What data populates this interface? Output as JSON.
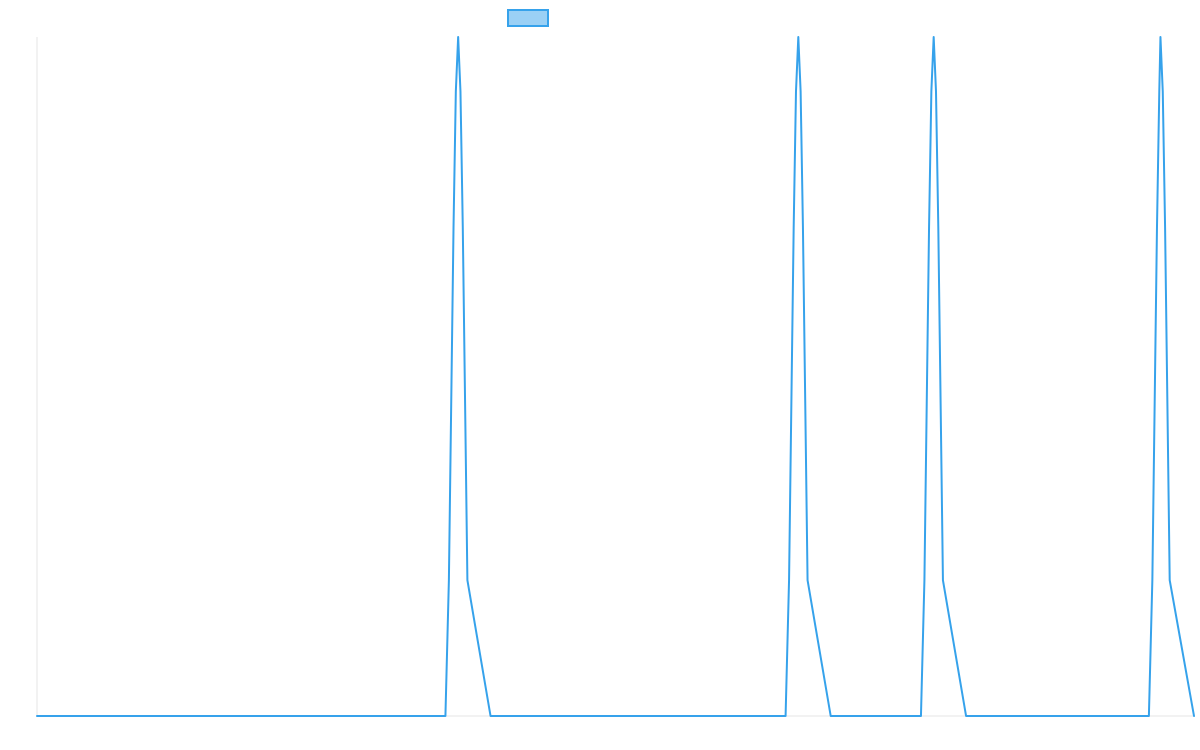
{
  "chart_data": {
    "type": "line",
    "title": "",
    "xlabel": "",
    "ylabel": "",
    "xlim": [
      0,
      1000
    ],
    "ylim": [
      0,
      1
    ],
    "grid": false,
    "legend": {
      "position": "top-center",
      "show_label": false
    },
    "colors": {
      "line": "#36a2eb",
      "legend_fill": "#9ad0f5",
      "axis": "#e6e6e6",
      "background": "#ffffff"
    },
    "series": [
      {
        "color": "#36a2eb",
        "points": [
          [
            0,
            0
          ],
          [
            353,
            0
          ],
          [
            356,
            0.2
          ],
          [
            358,
            0.46
          ],
          [
            360,
            0.72
          ],
          [
            362,
            0.92
          ],
          [
            364,
            1.0
          ],
          [
            366,
            0.92
          ],
          [
            368,
            0.72
          ],
          [
            370,
            0.46
          ],
          [
            372,
            0.2
          ],
          [
            392,
            0
          ],
          [
            647,
            0
          ],
          [
            650,
            0.2
          ],
          [
            652,
            0.46
          ],
          [
            654,
            0.72
          ],
          [
            656,
            0.92
          ],
          [
            658,
            1.0
          ],
          [
            660,
            0.92
          ],
          [
            662,
            0.72
          ],
          [
            664,
            0.46
          ],
          [
            666,
            0.2
          ],
          [
            686,
            0
          ],
          [
            764,
            0
          ],
          [
            767,
            0.2
          ],
          [
            769,
            0.46
          ],
          [
            771,
            0.72
          ],
          [
            773,
            0.92
          ],
          [
            775,
            1.0
          ],
          [
            777,
            0.92
          ],
          [
            779,
            0.72
          ],
          [
            781,
            0.46
          ],
          [
            783,
            0.2
          ],
          [
            803,
            0
          ],
          [
            961,
            0
          ],
          [
            964,
            0.2
          ],
          [
            966,
            0.46
          ],
          [
            968,
            0.72
          ],
          [
            970,
            0.92
          ],
          [
            971,
            1.0
          ],
          [
            973,
            0.92
          ],
          [
            975,
            0.72
          ],
          [
            977,
            0.46
          ],
          [
            979,
            0.2
          ],
          [
            1000,
            0
          ]
        ]
      }
    ]
  }
}
